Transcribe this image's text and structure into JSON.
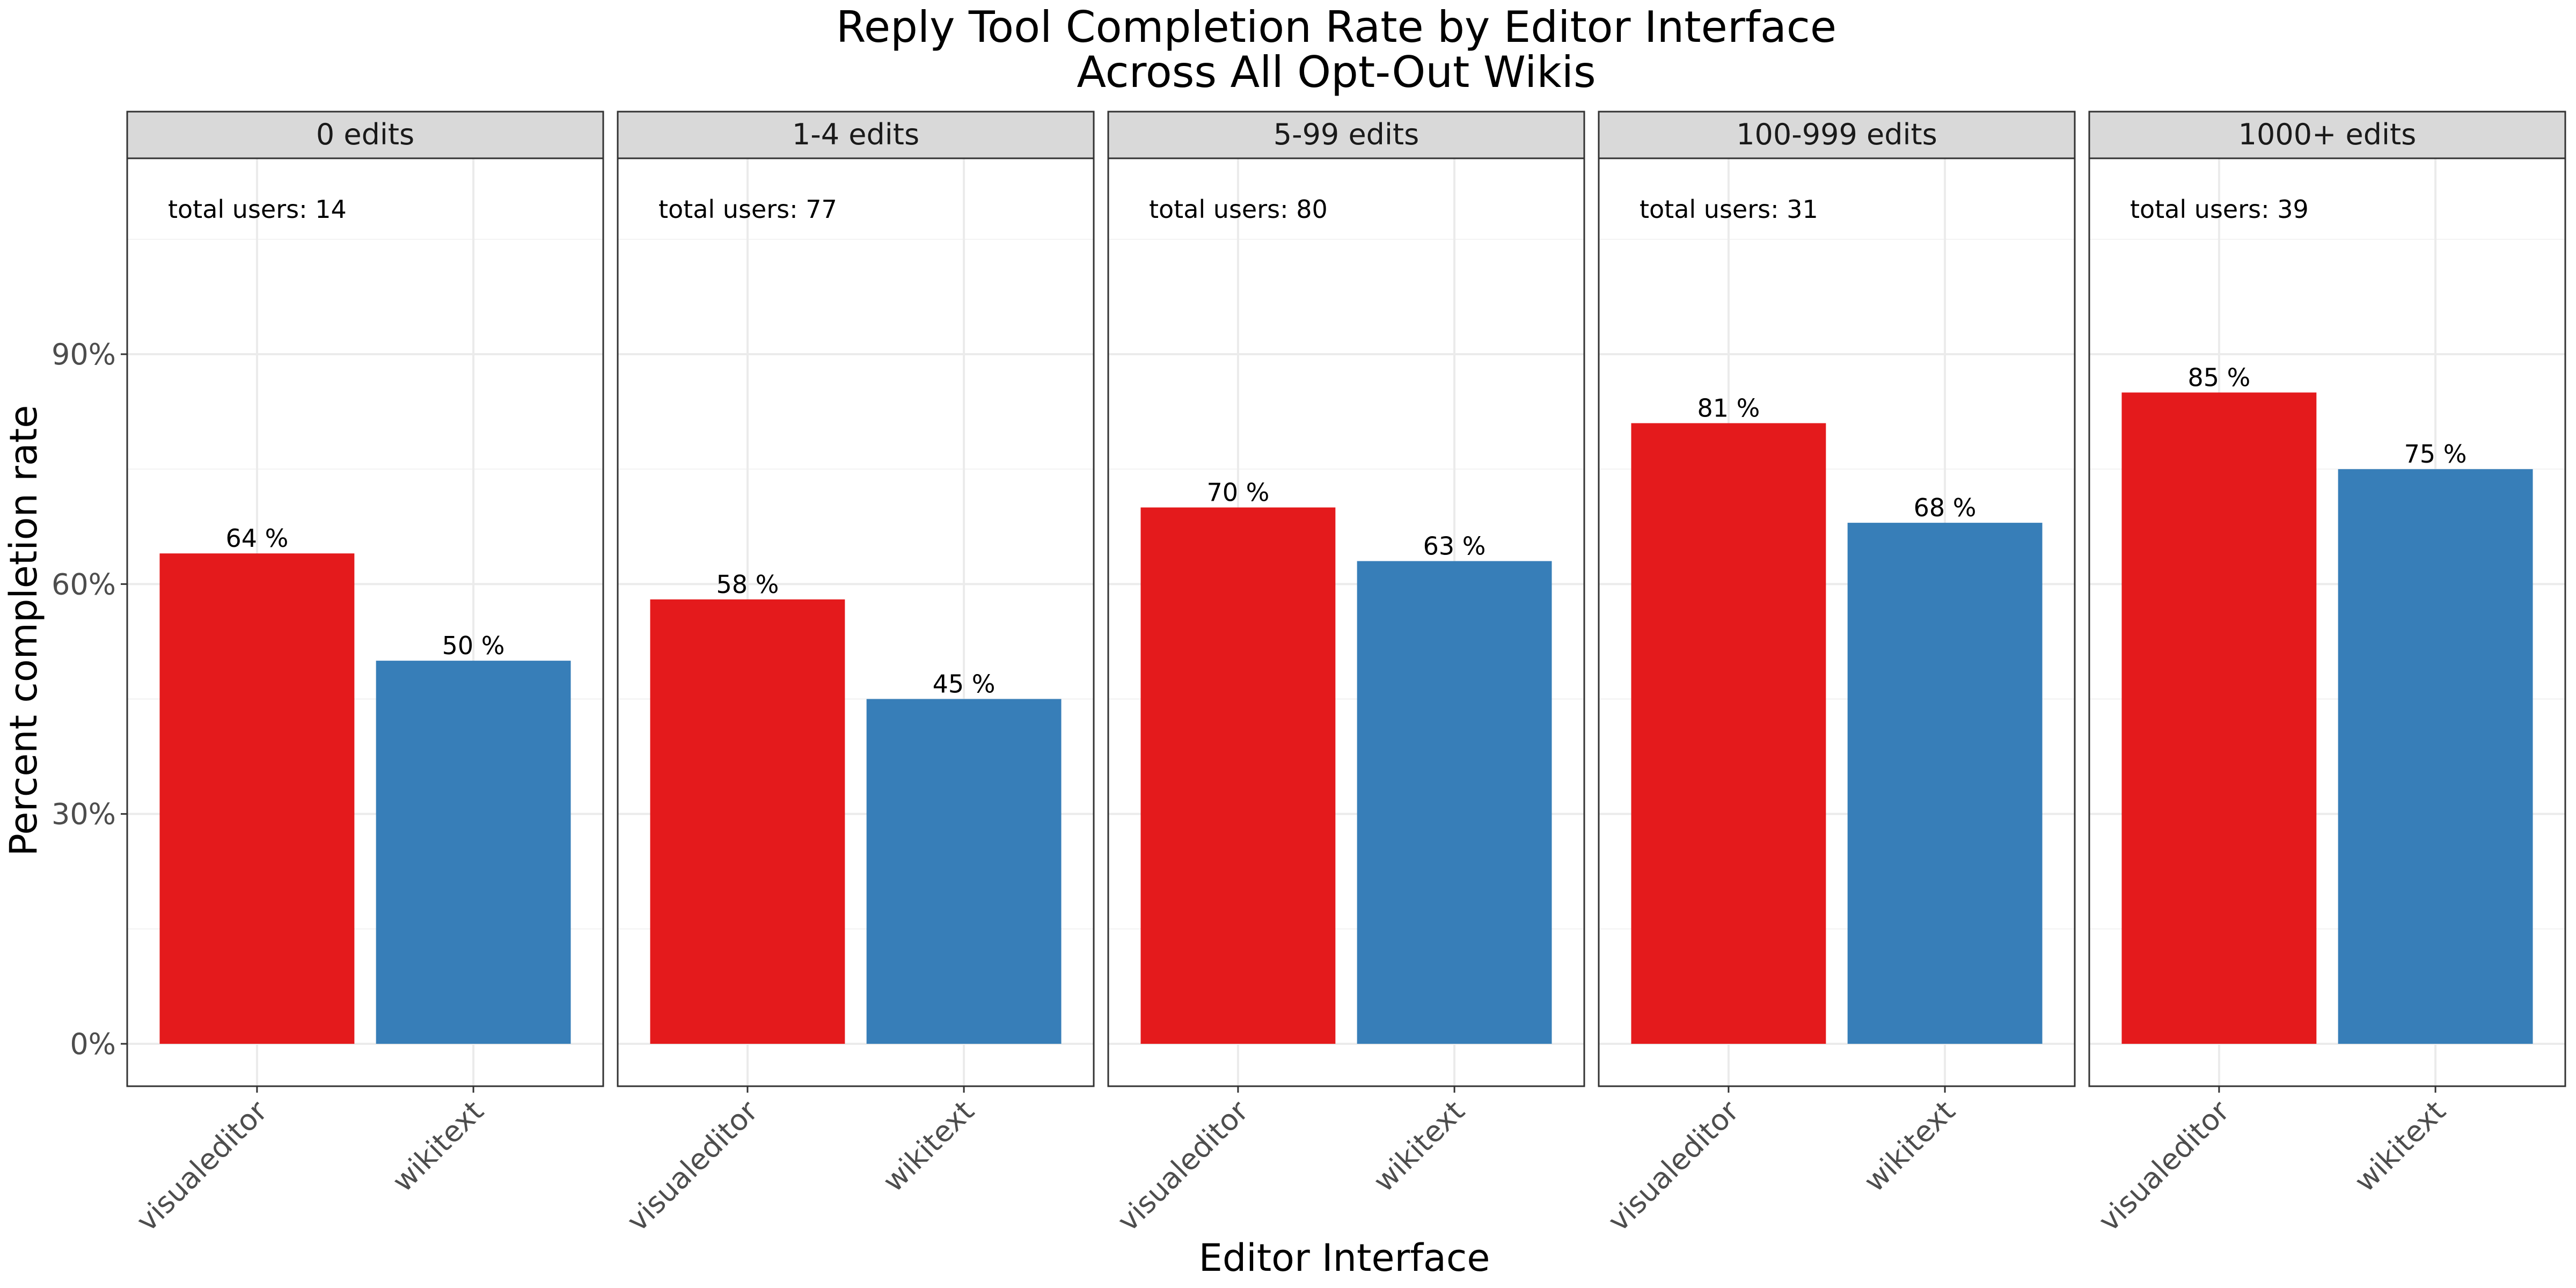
{
  "chart_data": {
    "type": "bar",
    "title": "Reply Tool Completion Rate by Editor Interface",
    "subtitle": "Across All Opt-Out Wikis",
    "xlabel": "Editor Interface",
    "ylabel": "Percent completion rate",
    "ylim": [
      0,
      1.15
    ],
    "yticks": [
      0,
      0.3,
      0.6,
      0.9
    ],
    "ytick_labels": [
      "0%",
      "30%",
      "60%",
      "90%"
    ],
    "categories": [
      "visualeditor",
      "wikitext"
    ],
    "colors": {
      "visualeditor": "#E41A1C",
      "wikitext": "#377EB8"
    },
    "grid": true,
    "legend": "none",
    "panels": [
      {
        "label": "0 edits",
        "annotation": "total users: 14",
        "values": [
          0.64,
          0.5
        ],
        "value_labels": [
          "64 %",
          "50 %"
        ]
      },
      {
        "label": "1-4 edits",
        "annotation": "total users: 77",
        "values": [
          0.58,
          0.45
        ],
        "value_labels": [
          "58 %",
          "45 %"
        ]
      },
      {
        "label": "5-99 edits",
        "annotation": "total users: 80",
        "values": [
          0.7,
          0.63
        ],
        "value_labels": [
          "70 %",
          "63 %"
        ]
      },
      {
        "label": "100-999 edits",
        "annotation": "total users: 31",
        "values": [
          0.81,
          0.68
        ],
        "value_labels": [
          "81 %",
          "68 %"
        ]
      },
      {
        "label": "1000+ edits",
        "annotation": "total users: 39",
        "values": [
          0.85,
          0.75
        ],
        "value_labels": [
          "85 %",
          "75 %"
        ]
      }
    ]
  }
}
